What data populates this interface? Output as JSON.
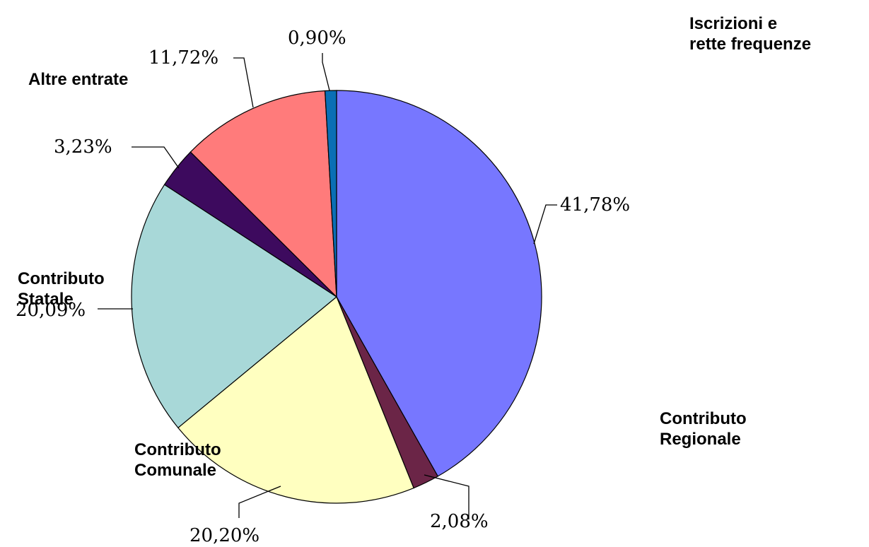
{
  "chart_data": {
    "type": "pie",
    "title": "",
    "slices": [
      {
        "label": "41,78%",
        "value": 41.78,
        "color": "#7777ff"
      },
      {
        "label": "2,08%",
        "value": 2.08,
        "color": "#6b2547"
      },
      {
        "label": "20,20%",
        "value": 20.2,
        "color": "#ffffc0"
      },
      {
        "label": "20,09%",
        "value": 20.09,
        "color": "#a8d8d8"
      },
      {
        "label": "3,23%",
        "value": 3.23,
        "color": "#3d0a5e"
      },
      {
        "label": "11,72%",
        "value": 11.72,
        "color": "#ff7b7b"
      },
      {
        "label": "0,90%",
        "value": 0.9,
        "color": "#0a6fb5"
      }
    ],
    "start": "12 o'clock",
    "direction": "clockwise"
  },
  "category_labels": {
    "iscrizioni": [
      "Iscrizioni e",
      "rette frequenze"
    ],
    "altre": [
      "Altre entrate"
    ],
    "statale": [
      "Contributo",
      "Statale"
    ],
    "comunale": [
      "Contributo",
      "Comunale"
    ],
    "regionale": [
      "Contributo",
      "Regionale"
    ]
  }
}
